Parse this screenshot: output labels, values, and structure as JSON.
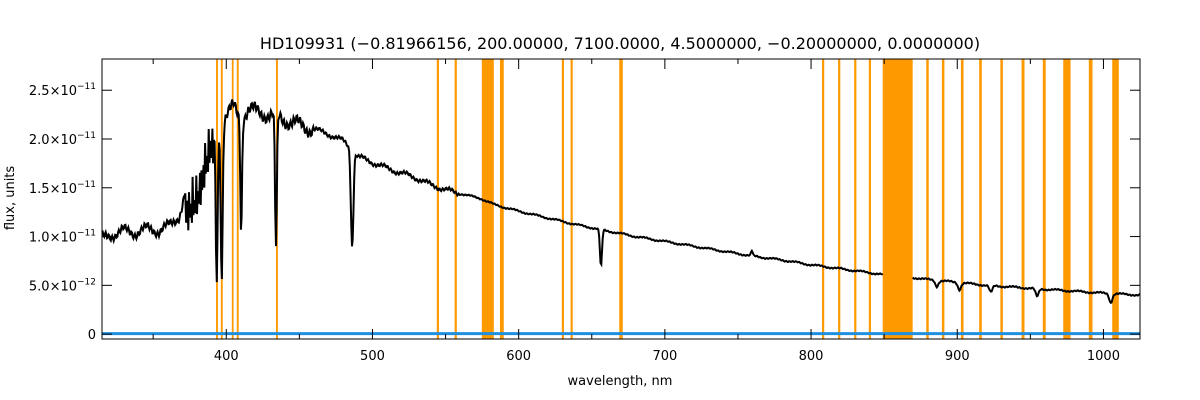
{
  "chart_data": {
    "type": "line",
    "title": "HD109931   (−0.81966156, 200.00000, 7100.0000, 4.5000000, −0.20000000, 0.0000000)",
    "xlabel": "wavelength, nm",
    "ylabel": "flux, units",
    "xlim": [
      315,
      1025
    ],
    "ylim": [
      -5e-13,
      2.82e-11
    ],
    "x_ticks": [
      {
        "value": 400,
        "label": "400"
      },
      {
        "value": 500,
        "label": "500"
      },
      {
        "value": 600,
        "label": "600"
      },
      {
        "value": 700,
        "label": "700"
      },
      {
        "value": 800,
        "label": "800"
      },
      {
        "value": 900,
        "label": "900"
      },
      {
        "value": 1000,
        "label": "1000"
      }
    ],
    "y_ticks": [
      {
        "value": 0,
        "mant": "0",
        "exp": ""
      },
      {
        "value": 5e-12,
        "mant": "5.0×10",
        "exp": "−12"
      },
      {
        "value": 1e-11,
        "mant": "1.0×10",
        "exp": "−11"
      },
      {
        "value": 1.5e-11,
        "mant": "1.5×10",
        "exp": "−11"
      },
      {
        "value": 2e-11,
        "mant": "2.0×10",
        "exp": "−11"
      },
      {
        "value": 2.5e-11,
        "mant": "2.5×10",
        "exp": "−11"
      }
    ],
    "colors": {
      "spectrum": "#000000",
      "error": "#1f8fdf",
      "mask": "#ff9900"
    },
    "masked_regions": [
      [
        393.0,
        394.3
      ],
      [
        396.3,
        397.6
      ],
      [
        403.8,
        405.0
      ],
      [
        407.2,
        408.5
      ],
      [
        434.0,
        435.3
      ],
      [
        544.0,
        545.5
      ],
      [
        556.2,
        557.7
      ],
      [
        574.8,
        583.0
      ],
      [
        587.2,
        589.8
      ],
      [
        629.5,
        631.0
      ],
      [
        635.5,
        637.0
      ],
      [
        668.8,
        671.2
      ],
      [
        807.5,
        809.0
      ],
      [
        818.5,
        820.0
      ],
      [
        829.5,
        831.0
      ],
      [
        839.5,
        841.0
      ],
      [
        849.0,
        869.5
      ],
      [
        878.8,
        880.5
      ],
      [
        889.5,
        891.2
      ],
      [
        902.5,
        904.3
      ],
      [
        915.0,
        916.8
      ],
      [
        929.5,
        931.2
      ],
      [
        944.0,
        946.0
      ],
      [
        958.5,
        960.5
      ],
      [
        972.5,
        977.5
      ],
      [
        990.0,
        992.5
      ],
      [
        1006.0,
        1010.5
      ]
    ],
    "spectrum_points": [
      [
        315,
        9.8e-12
      ],
      [
        322,
        1.02e-11
      ],
      [
        330,
        1.06e-11
      ],
      [
        338,
        1.04e-11
      ],
      [
        346,
        1.08e-11
      ],
      [
        354,
        1.06e-11
      ],
      [
        362,
        1.12e-11
      ],
      [
        368,
        1.22e-11
      ],
      [
        372,
        1.45e-11
      ],
      [
        376,
        1.55e-11
      ],
      [
        380,
        1.7e-11
      ],
      [
        385,
        2e-11
      ],
      [
        390,
        2.15e-11
      ],
      [
        395,
        2.05e-11
      ],
      [
        400,
        2.25e-11
      ],
      [
        405,
        2.32e-11
      ],
      [
        410,
        2.2e-11
      ],
      [
        415,
        2.3e-11
      ],
      [
        420,
        2.28e-11
      ],
      [
        430,
        2.25e-11
      ],
      [
        440,
        2.2e-11
      ],
      [
        450,
        2.14e-11
      ],
      [
        460,
        2.1e-11
      ],
      [
        470,
        2.05e-11
      ],
      [
        480,
        1.98e-11
      ],
      [
        486,
        1.9e-11
      ],
      [
        490,
        1.82e-11
      ],
      [
        500,
        1.76e-11
      ],
      [
        510,
        1.7e-11
      ],
      [
        520,
        1.65e-11
      ],
      [
        530,
        1.6e-11
      ],
      [
        540,
        1.53e-11
      ],
      [
        550,
        1.48e-11
      ],
      [
        560,
        1.44e-11
      ],
      [
        574,
        1.39e-11
      ],
      [
        583,
        1.33e-11
      ],
      [
        590,
        1.3e-11
      ],
      [
        600,
        1.26e-11
      ],
      [
        620,
        1.19e-11
      ],
      [
        640,
        1.12e-11
      ],
      [
        660,
        1.06e-11
      ],
      [
        680,
        1e-11
      ],
      [
        700,
        9.5e-12
      ],
      [
        720,
        9e-12
      ],
      [
        740,
        8.5e-12
      ],
      [
        760,
        8e-12
      ],
      [
        780,
        7.6e-12
      ],
      [
        800,
        7.1e-12
      ],
      [
        820,
        6.7e-12
      ],
      [
        840,
        6.3e-12
      ],
      [
        849,
        6.1e-12
      ],
      [
        869.5,
        5.8e-12
      ],
      [
        880,
        5.6e-12
      ],
      [
        900,
        5.3e-12
      ],
      [
        920,
        5e-12
      ],
      [
        940,
        4.8e-12
      ],
      [
        960,
        4.6e-12
      ],
      [
        980,
        4.4e-12
      ],
      [
        1000,
        4.2e-12
      ],
      [
        1025,
        4e-12
      ]
    ],
    "absorption_lines": [
      {
        "center": 393.4,
        "depth": 1.55e-11,
        "width": 0.9
      },
      {
        "center": 396.9,
        "depth": 1.55e-11,
        "width": 0.9
      },
      {
        "center": 410.2,
        "depth": 1.15e-11,
        "width": 0.8
      },
      {
        "center": 434.0,
        "depth": 1.35e-11,
        "width": 0.9
      },
      {
        "center": 486.1,
        "depth": 1e-11,
        "width": 1.2
      },
      {
        "center": 656.3,
        "depth": 3.8e-12,
        "width": 1.0
      },
      {
        "center": 759.5,
        "depth": -5e-13,
        "width": 0.8
      },
      {
        "center": 886.0,
        "depth": 6e-13,
        "width": 1.5
      },
      {
        "center": 901.5,
        "depth": 7e-13,
        "width": 1.5
      },
      {
        "center": 923.0,
        "depth": 7e-13,
        "width": 1.5
      },
      {
        "center": 954.6,
        "depth": 8e-13,
        "width": 1.5
      },
      {
        "center": 1005.0,
        "depth": 9e-13,
        "width": 1.5
      }
    ],
    "gaps": [
      [
        849,
        869.5
      ],
      [
        583,
        583
      ]
    ],
    "error_level": 5e-14,
    "grid": false
  }
}
